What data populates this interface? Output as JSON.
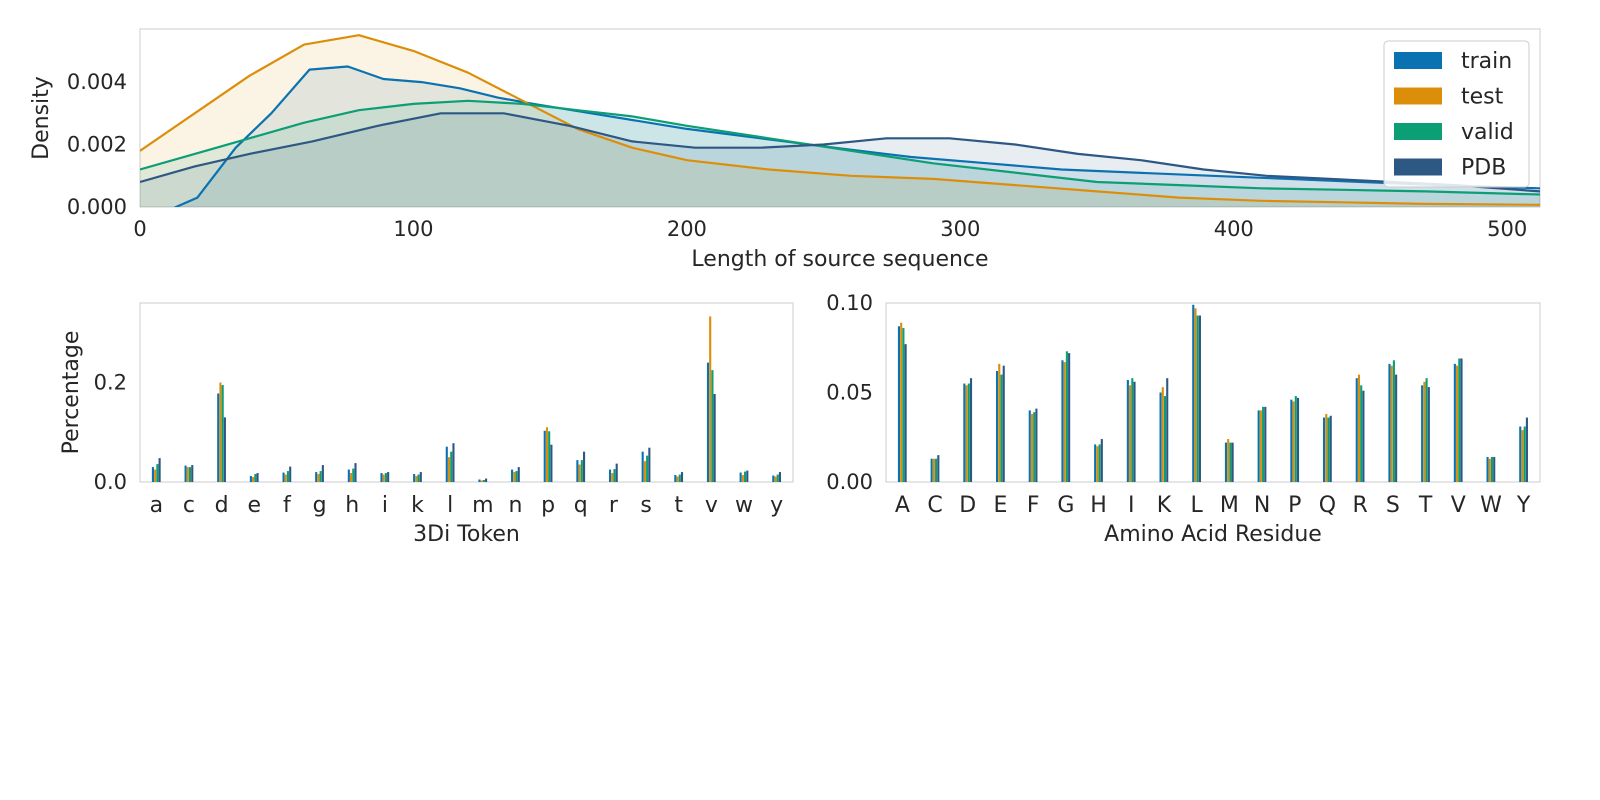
{
  "colors": {
    "train": "#0a72b0",
    "test": "#dc8e0b",
    "valid": "#0c9e74",
    "PDB": "#2e5884",
    "grid_frame": "#cccccc",
    "text": "#262626"
  },
  "chart_data": [
    {
      "type": "area",
      "title": "",
      "xlabel": "Length of source sequence",
      "ylabel": "Density",
      "xlim": [
        0,
        512
      ],
      "ylim": [
        0,
        0.0057
      ],
      "xticks": [
        "0",
        "100",
        "200",
        "300",
        "400",
        "500"
      ],
      "yticks": [
        "0.000",
        "0.002",
        "0.004"
      ],
      "legend_position": "top-right",
      "series": [
        {
          "name": "train",
          "points": [
            [
              0,
              -0.0005
            ],
            [
              8,
              -0.0002
            ],
            [
              21,
              0.0003
            ],
            [
              35,
              0.0019
            ],
            [
              48,
              0.003
            ],
            [
              62,
              0.0044
            ],
            [
              76,
              0.0045
            ],
            [
              89,
              0.0041
            ],
            [
              103,
              0.004
            ],
            [
              117,
              0.0038
            ],
            [
              131,
              0.0035
            ],
            [
              144,
              0.0033
            ],
            [
              172,
              0.0029
            ],
            [
              200,
              0.0025
            ],
            [
              227,
              0.0022
            ],
            [
              254,
              0.0019
            ],
            [
              282,
              0.0016
            ],
            [
              310,
              0.0014
            ],
            [
              337,
              0.0012
            ],
            [
              364,
              0.0011
            ],
            [
              392,
              0.001
            ],
            [
              420,
              0.0009
            ],
            [
              447,
              0.0008
            ],
            [
              475,
              0.0007
            ],
            [
              512,
              0.0006
            ]
          ]
        },
        {
          "name": "test",
          "points": [
            [
              0,
              0.0018
            ],
            [
              20,
              0.003
            ],
            [
              40,
              0.0042
            ],
            [
              60,
              0.0052
            ],
            [
              80,
              0.0055
            ],
            [
              100,
              0.005
            ],
            [
              120,
              0.0043
            ],
            [
              140,
              0.0034
            ],
            [
              160,
              0.0025
            ],
            [
              180,
              0.0019
            ],
            [
              200,
              0.0015
            ],
            [
              230,
              0.0012
            ],
            [
              260,
              0.001
            ],
            [
              290,
              0.0009
            ],
            [
              320,
              0.0007
            ],
            [
              350,
              0.0005
            ],
            [
              380,
              0.0003
            ],
            [
              410,
              0.0002
            ],
            [
              440,
              0.00015
            ],
            [
              470,
              0.0001
            ],
            [
              512,
              7e-05
            ]
          ]
        },
        {
          "name": "valid",
          "points": [
            [
              0,
              0.0012
            ],
            [
              20,
              0.0017
            ],
            [
              40,
              0.0022
            ],
            [
              60,
              0.0027
            ],
            [
              80,
              0.0031
            ],
            [
              100,
              0.0033
            ],
            [
              120,
              0.0034
            ],
            [
              140,
              0.0033
            ],
            [
              160,
              0.0031
            ],
            [
              180,
              0.0029
            ],
            [
              200,
              0.0026
            ],
            [
              230,
              0.0022
            ],
            [
              260,
              0.0018
            ],
            [
              290,
              0.0014
            ],
            [
              320,
              0.0011
            ],
            [
              350,
              0.0008
            ],
            [
              380,
              0.0007
            ],
            [
              410,
              0.0006
            ],
            [
              440,
              0.00055
            ],
            [
              470,
              0.0005
            ],
            [
              512,
              0.0004
            ]
          ]
        },
        {
          "name": "PDB",
          "points": [
            [
              0,
              0.0008
            ],
            [
              20,
              0.0013
            ],
            [
              40,
              0.0017
            ],
            [
              63,
              0.0021
            ],
            [
              87,
              0.0026
            ],
            [
              110,
              0.003
            ],
            [
              133,
              0.003
            ],
            [
              157,
              0.0026
            ],
            [
              180,
              0.0021
            ],
            [
              203,
              0.0019
            ],
            [
              227,
              0.0019
            ],
            [
              250,
              0.002
            ],
            [
              273,
              0.0022
            ],
            [
              296,
              0.0022
            ],
            [
              320,
              0.002
            ],
            [
              343,
              0.0017
            ],
            [
              366,
              0.0015
            ],
            [
              389,
              0.0012
            ],
            [
              412,
              0.001
            ],
            [
              435,
              0.0009
            ],
            [
              458,
              0.0008
            ],
            [
              481,
              0.0007
            ],
            [
              512,
              0.0005
            ]
          ]
        }
      ]
    },
    {
      "type": "bar",
      "title": "",
      "xlabel": "3Di Token",
      "ylabel": "Percentage",
      "ylim": [
        0,
        0.36
      ],
      "yticks": [
        "0.0",
        "0.2"
      ],
      "categories": [
        "a",
        "c",
        "d",
        "e",
        "f",
        "g",
        "h",
        "i",
        "k",
        "l",
        "m",
        "n",
        "p",
        "q",
        "r",
        "s",
        "t",
        "v",
        "w",
        "y"
      ],
      "series": [
        {
          "name": "train",
          "values": [
            0.03,
            0.033,
            0.178,
            0.012,
            0.019,
            0.02,
            0.025,
            0.018,
            0.016,
            0.071,
            0.005,
            0.025,
            0.103,
            0.044,
            0.025,
            0.061,
            0.014,
            0.24,
            0.019,
            0.013
          ]
        },
        {
          "name": "test",
          "values": [
            0.025,
            0.03,
            0.2,
            0.01,
            0.015,
            0.016,
            0.018,
            0.015,
            0.012,
            0.05,
            0.003,
            0.02,
            0.11,
            0.035,
            0.018,
            0.042,
            0.011,
            0.333,
            0.014,
            0.011
          ]
        },
        {
          "name": "valid",
          "values": [
            0.036,
            0.03,
            0.195,
            0.016,
            0.022,
            0.022,
            0.027,
            0.018,
            0.015,
            0.061,
            0.004,
            0.022,
            0.102,
            0.044,
            0.026,
            0.053,
            0.015,
            0.225,
            0.021,
            0.015
          ]
        },
        {
          "name": "PDB",
          "values": [
            0.048,
            0.034,
            0.13,
            0.018,
            0.031,
            0.034,
            0.038,
            0.02,
            0.02,
            0.078,
            0.007,
            0.03,
            0.075,
            0.061,
            0.037,
            0.069,
            0.02,
            0.177,
            0.023,
            0.02
          ]
        }
      ]
    },
    {
      "type": "bar",
      "title": "",
      "xlabel": "Amino Acid Residue",
      "ylabel": "",
      "ylim": [
        0,
        0.1
      ],
      "yticks": [
        "0.00",
        "0.05",
        "0.10"
      ],
      "categories": [
        "A",
        "C",
        "D",
        "E",
        "F",
        "G",
        "H",
        "I",
        "K",
        "L",
        "M",
        "N",
        "P",
        "Q",
        "R",
        "S",
        "T",
        "V",
        "W",
        "Y"
      ],
      "series": [
        {
          "name": "train",
          "values": [
            0.087,
            0.013,
            0.055,
            0.062,
            0.04,
            0.068,
            0.021,
            0.057,
            0.05,
            0.099,
            0.022,
            0.04,
            0.046,
            0.036,
            0.058,
            0.066,
            0.054,
            0.066,
            0.014,
            0.031
          ]
        },
        {
          "name": "test",
          "values": [
            0.089,
            0.013,
            0.054,
            0.066,
            0.038,
            0.067,
            0.02,
            0.054,
            0.053,
            0.097,
            0.024,
            0.04,
            0.045,
            0.038,
            0.06,
            0.065,
            0.056,
            0.065,
            0.013,
            0.029
          ]
        },
        {
          "name": "valid",
          "values": [
            0.086,
            0.013,
            0.055,
            0.06,
            0.039,
            0.073,
            0.021,
            0.058,
            0.048,
            0.093,
            0.022,
            0.042,
            0.048,
            0.036,
            0.054,
            0.068,
            0.058,
            0.069,
            0.014,
            0.031
          ]
        },
        {
          "name": "PDB",
          "values": [
            0.077,
            0.015,
            0.058,
            0.065,
            0.041,
            0.072,
            0.024,
            0.056,
            0.058,
            0.093,
            0.022,
            0.042,
            0.047,
            0.037,
            0.051,
            0.06,
            0.053,
            0.069,
            0.014,
            0.036
          ]
        }
      ]
    }
  ]
}
